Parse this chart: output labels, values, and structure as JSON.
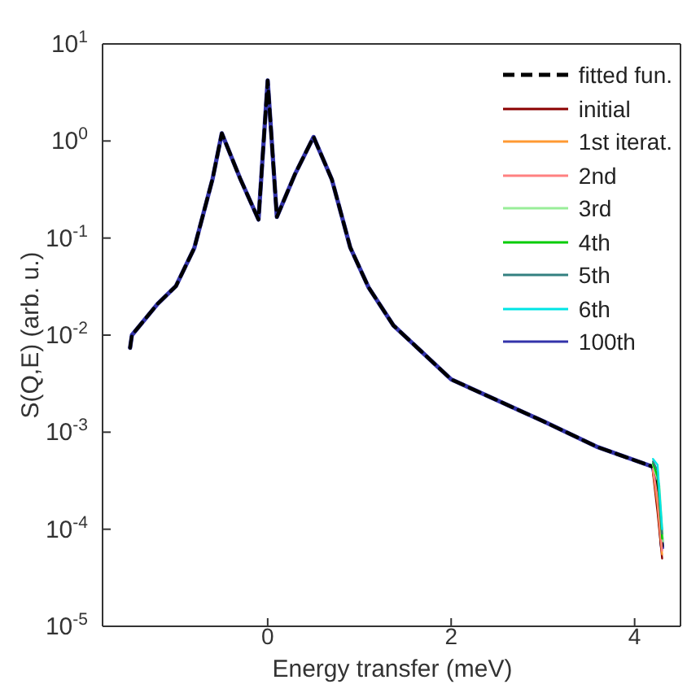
{
  "chart_data": {
    "type": "line",
    "xlabel": "Energy transfer (meV)",
    "ylabel": "S(Q,E) (arb. u.)",
    "x": [
      -1.5,
      -1.48,
      -1.2,
      -1.0,
      -0.8,
      -0.6,
      -0.5,
      -0.3,
      -0.1,
      0,
      0.1,
      0.3,
      0.5,
      0.7,
      0.9,
      1.1,
      1.37,
      2,
      3,
      3.6,
      4.2,
      4.25,
      4.3
    ],
    "series": [
      {
        "name": "fitted fun.",
        "color": "#000000",
        "line_style": "dashed",
        "values": [
          0.0074,
          0.01,
          0.021,
          0.032,
          0.079,
          0.41,
          1.2,
          0.41,
          0.155,
          4.2,
          0.165,
          0.46,
          1.1,
          0.4,
          0.08,
          0.031,
          0.0126,
          0.0035,
          0.0013,
          0.0007,
          0.00044,
          0.0003,
          6e-05
        ]
      },
      {
        "name": "initial",
        "color": "#8b0000",
        "x": [
          4.2,
          4.25,
          4.3
        ],
        "values": [
          0.00038,
          0.00015,
          5e-05
        ]
      },
      {
        "name": "1st iterat.",
        "color": "#ff9933",
        "x": [
          4.2,
          4.25,
          4.3
        ],
        "values": [
          0.0004,
          0.00018,
          5.5e-05
        ]
      },
      {
        "name": "2nd",
        "color": "#ff8080",
        "x": [
          4.2,
          4.25,
          4.3
        ],
        "values": [
          0.00042,
          0.00021,
          6e-05
        ]
      },
      {
        "name": "3rd",
        "color": "#99ee99",
        "x": [
          4.2,
          4.27,
          4.31
        ],
        "values": [
          0.00046,
          0.00028,
          7.5e-05
        ]
      },
      {
        "name": "4th",
        "color": "#00cc00",
        "x": [
          4.2,
          4.25,
          4.3
        ],
        "values": [
          0.00048,
          0.00035,
          8e-05
        ]
      },
      {
        "name": "5th",
        "color": "#338080",
        "x": [
          4.2,
          4.25,
          4.3
        ],
        "values": [
          0.0005,
          0.0004,
          9e-05
        ]
      },
      {
        "name": "6th",
        "color": "#00e5e5",
        "x": [
          4.2,
          4.25,
          4.3
        ],
        "values": [
          0.00053,
          0.00046,
          0.0001
        ]
      },
      {
        "name": "100th",
        "color": "#3333aa",
        "values": [
          0.0074,
          0.01,
          0.021,
          0.032,
          0.079,
          0.41,
          1.2,
          0.41,
          0.155,
          4.2,
          0.165,
          0.46,
          1.1,
          0.4,
          0.08,
          0.031,
          0.0126,
          0.0035,
          0.0013,
          0.0007,
          0.00044,
          0.00025,
          6.5e-05
        ]
      }
    ],
    "xlim": [
      -1.8,
      4.5
    ],
    "xticks": [
      0,
      2,
      4
    ],
    "ylim": [
      1e-05,
      10
    ],
    "yticks": [
      {
        "value": 1e-05,
        "label": "10$^{-5}$"
      },
      {
        "value": 0.0001,
        "label": "10$^{-4}$"
      },
      {
        "value": 0.001,
        "label": "10$^{-3}$"
      },
      {
        "value": 0.01,
        "label": "10$^{-2}$"
      },
      {
        "value": 0.1,
        "label": "10$^{-1}$"
      },
      {
        "value": 1,
        "label": "10$^{0}$"
      },
      {
        "value": 10,
        "label": "10$^{1}$"
      }
    ],
    "log": "y",
    "grid": false,
    "legend": "top right",
    "marker": "none"
  }
}
